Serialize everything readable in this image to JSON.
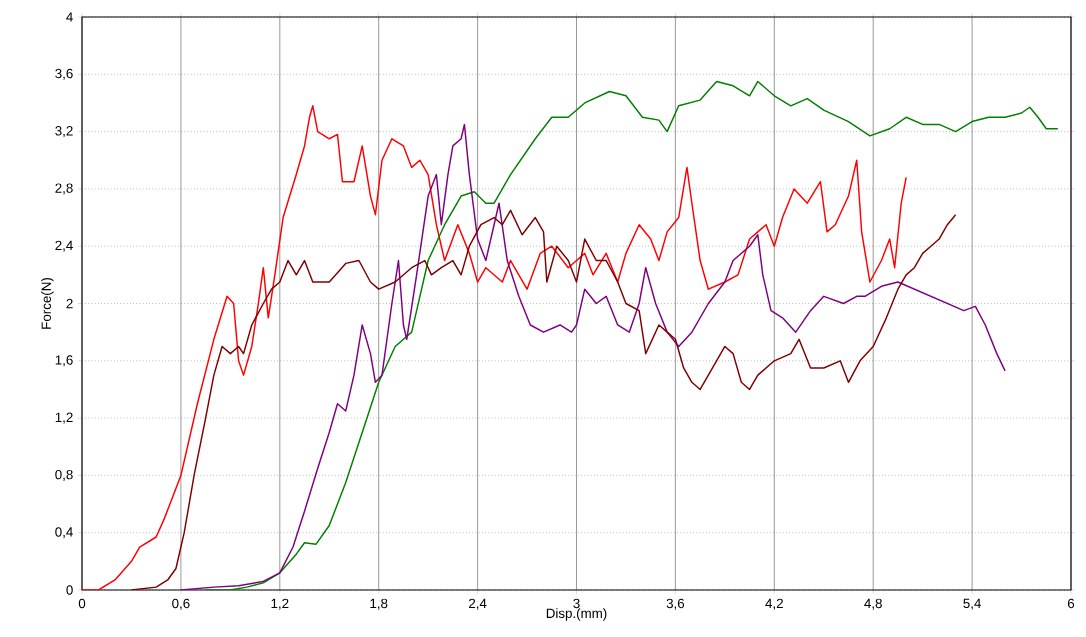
{
  "chart_data": {
    "type": "line",
    "xlabel": "Disp.(mm)",
    "ylabel": "Force(N)",
    "xlim": [
      0,
      6
    ],
    "ylim": [
      0,
      4
    ],
    "xticks": [
      0,
      {
        "value": 0.6,
        "label": "0,6"
      },
      {
        "value": 1.2,
        "label": "1,2"
      },
      {
        "value": 1.8,
        "label": "1,8"
      },
      {
        "value": 2.4,
        "label": "2,4"
      },
      3,
      {
        "value": 3.6,
        "label": "3,6"
      },
      {
        "value": 4.2,
        "label": "4,2"
      },
      {
        "value": 4.8,
        "label": "4,8"
      },
      {
        "value": 5.4,
        "label": "5,4"
      },
      6
    ],
    "yticks": [
      0,
      {
        "value": 0.4,
        "label": "0,4"
      },
      {
        "value": 0.8,
        "label": "0,8"
      },
      {
        "value": 1.2,
        "label": "1,2"
      },
      {
        "value": 1.6,
        "label": "1,6"
      },
      2,
      {
        "value": 2.4,
        "label": "2,4"
      },
      {
        "value": 2.8,
        "label": "2,8"
      },
      {
        "value": 3.2,
        "label": "3,2"
      },
      {
        "value": 3.6,
        "label": "3,6"
      },
      4
    ],
    "grid": true,
    "marker": "none",
    "line_style": "solid",
    "series": [
      {
        "color": "#ff0000",
        "x": [
          0,
          0.1,
          0.2,
          0.3,
          0.35,
          0.45,
          0.5,
          0.6,
          0.7,
          0.8,
          0.88,
          0.92,
          0.95,
          0.98,
          1.03,
          1.07,
          1.1,
          1.13,
          1.17,
          1.22,
          1.3,
          1.35,
          1.38,
          1.4,
          1.43,
          1.5,
          1.55,
          1.58,
          1.65,
          1.7,
          1.75,
          1.78,
          1.82,
          1.88,
          1.95,
          2.0,
          2.05,
          2.1,
          2.15,
          2.2,
          2.28,
          2.35,
          2.4,
          2.45,
          2.55,
          2.6,
          2.7,
          2.78,
          2.85,
          2.95,
          3.05,
          3.1,
          3.18,
          3.25,
          3.3,
          3.38,
          3.45,
          3.5,
          3.55,
          3.62,
          3.67,
          3.7,
          3.75,
          3.8,
          3.9,
          3.98,
          4.05,
          4.1,
          4.15,
          4.2,
          4.25,
          4.32,
          4.4,
          4.48,
          4.52,
          4.57,
          4.65,
          4.7,
          4.73,
          4.78,
          4.85,
          4.9,
          4.93,
          4.97,
          5.0
        ],
        "values": [
          0,
          0,
          0.07,
          0.2,
          0.3,
          0.37,
          0.5,
          0.8,
          1.3,
          1.75,
          2.05,
          2.0,
          1.6,
          1.5,
          1.7,
          2.0,
          2.25,
          1.9,
          2.2,
          2.6,
          2.9,
          3.1,
          3.3,
          3.38,
          3.2,
          3.15,
          3.18,
          2.85,
          2.85,
          3.1,
          2.75,
          2.62,
          3.0,
          3.15,
          3.1,
          2.95,
          3.0,
          2.9,
          2.55,
          2.3,
          2.55,
          2.35,
          2.15,
          2.25,
          2.15,
          2.3,
          2.1,
          2.35,
          2.4,
          2.25,
          2.35,
          2.2,
          2.35,
          2.15,
          2.35,
          2.55,
          2.45,
          2.3,
          2.5,
          2.6,
          2.95,
          2.7,
          2.3,
          2.1,
          2.15,
          2.2,
          2.45,
          2.5,
          2.55,
          2.4,
          2.6,
          2.8,
          2.7,
          2.85,
          2.5,
          2.55,
          2.75,
          3.0,
          2.5,
          2.15,
          2.3,
          2.45,
          2.25,
          2.7,
          2.88
        ]
      },
      {
        "color": "#008000",
        "x": [
          0.75,
          0.9,
          1.0,
          1.1,
          1.2,
          1.3,
          1.35,
          1.42,
          1.5,
          1.6,
          1.7,
          1.8,
          1.9,
          2.0,
          2.05,
          2.1,
          2.2,
          2.3,
          2.38,
          2.45,
          2.5,
          2.6,
          2.75,
          2.85,
          2.95,
          3.05,
          3.2,
          3.3,
          3.4,
          3.5,
          3.55,
          3.62,
          3.75,
          3.85,
          3.95,
          4.05,
          4.1,
          4.2,
          4.3,
          4.4,
          4.5,
          4.65,
          4.78,
          4.9,
          5.0,
          5.1,
          5.2,
          5.3,
          5.4,
          5.5,
          5.6,
          5.7,
          5.75,
          5.8,
          5.85,
          5.92
        ],
        "values": [
          0,
          0,
          0.02,
          0.05,
          0.12,
          0.25,
          0.33,
          0.32,
          0.45,
          0.75,
          1.1,
          1.45,
          1.7,
          1.8,
          2.05,
          2.3,
          2.55,
          2.75,
          2.78,
          2.7,
          2.7,
          2.9,
          3.15,
          3.3,
          3.3,
          3.4,
          3.48,
          3.45,
          3.3,
          3.28,
          3.2,
          3.38,
          3.42,
          3.55,
          3.52,
          3.45,
          3.55,
          3.45,
          3.38,
          3.43,
          3.35,
          3.27,
          3.17,
          3.22,
          3.3,
          3.25,
          3.25,
          3.2,
          3.27,
          3.3,
          3.3,
          3.33,
          3.37,
          3.3,
          3.22,
          3.22
        ]
      },
      {
        "color": "#800080",
        "x": [
          0.6,
          0.8,
          0.95,
          1.1,
          1.2,
          1.28,
          1.35,
          1.43,
          1.5,
          1.55,
          1.6,
          1.65,
          1.7,
          1.75,
          1.78,
          1.82,
          1.88,
          1.92,
          1.95,
          1.97,
          2.03,
          2.1,
          2.15,
          2.18,
          2.22,
          2.25,
          2.3,
          2.32,
          2.35,
          2.4,
          2.45,
          2.5,
          2.53,
          2.58,
          2.65,
          2.72,
          2.8,
          2.9,
          2.97,
          3.0,
          3.05,
          3.12,
          3.18,
          3.25,
          3.32,
          3.38,
          3.42,
          3.48,
          3.55,
          3.62,
          3.7,
          3.8,
          3.9,
          3.95,
          4.05,
          4.1,
          4.13,
          4.18,
          4.25,
          4.33,
          4.42,
          4.5,
          4.62,
          4.7,
          4.75,
          4.85,
          4.95,
          5.05,
          5.15,
          5.25,
          5.35,
          5.42,
          5.48,
          5.55,
          5.6
        ],
        "values": [
          0,
          0.02,
          0.03,
          0.06,
          0.12,
          0.3,
          0.55,
          0.85,
          1.1,
          1.3,
          1.25,
          1.5,
          1.85,
          1.65,
          1.45,
          1.5,
          2.0,
          2.3,
          1.85,
          1.75,
          2.2,
          2.75,
          2.9,
          2.55,
          2.9,
          3.1,
          3.15,
          3.25,
          2.9,
          2.45,
          2.3,
          2.55,
          2.7,
          2.3,
          2.05,
          1.85,
          1.8,
          1.85,
          1.8,
          1.85,
          2.1,
          2.0,
          2.05,
          1.85,
          1.8,
          2.0,
          2.25,
          2.0,
          1.8,
          1.7,
          1.8,
          2.0,
          2.15,
          2.3,
          2.4,
          2.48,
          2.2,
          1.95,
          1.9,
          1.8,
          1.95,
          2.05,
          2.0,
          2.05,
          2.05,
          2.12,
          2.15,
          2.1,
          2.05,
          2.0,
          1.95,
          1.98,
          1.85,
          1.65,
          1.53
        ]
      },
      {
        "color": "#800000",
        "x": [
          0.3,
          0.45,
          0.52,
          0.57,
          0.62,
          0.68,
          0.75,
          0.8,
          0.85,
          0.9,
          0.95,
          0.98,
          1.03,
          1.1,
          1.15,
          1.2,
          1.25,
          1.3,
          1.35,
          1.4,
          1.5,
          1.6,
          1.68,
          1.75,
          1.8,
          1.9,
          2.0,
          2.08,
          2.12,
          2.18,
          2.25,
          2.3,
          2.35,
          2.42,
          2.5,
          2.55,
          2.6,
          2.67,
          2.75,
          2.8,
          2.82,
          2.88,
          2.95,
          3.0,
          3.05,
          3.12,
          3.18,
          3.25,
          3.3,
          3.38,
          3.42,
          3.5,
          3.55,
          3.6,
          3.65,
          3.7,
          3.75,
          3.8,
          3.9,
          3.95,
          4.0,
          4.05,
          4.1,
          4.2,
          4.3,
          4.35,
          4.42,
          4.5,
          4.6,
          4.65,
          4.72,
          4.8,
          4.88,
          4.95,
          5.0,
          5.05,
          5.1,
          5.15,
          5.2,
          5.25,
          5.3
        ],
        "values": [
          0,
          0.02,
          0.07,
          0.15,
          0.4,
          0.8,
          1.2,
          1.5,
          1.7,
          1.65,
          1.7,
          1.65,
          1.85,
          2.0,
          2.1,
          2.15,
          2.3,
          2.2,
          2.3,
          2.15,
          2.15,
          2.28,
          2.3,
          2.15,
          2.1,
          2.15,
          2.25,
          2.3,
          2.2,
          2.25,
          2.3,
          2.2,
          2.4,
          2.55,
          2.6,
          2.55,
          2.65,
          2.48,
          2.6,
          2.5,
          2.15,
          2.4,
          2.3,
          2.15,
          2.45,
          2.3,
          2.3,
          2.15,
          2.0,
          1.95,
          1.65,
          1.85,
          1.8,
          1.75,
          1.55,
          1.45,
          1.4,
          1.5,
          1.7,
          1.65,
          1.45,
          1.4,
          1.5,
          1.6,
          1.65,
          1.75,
          1.55,
          1.55,
          1.6,
          1.45,
          1.6,
          1.7,
          1.9,
          2.1,
          2.2,
          2.25,
          2.35,
          2.4,
          2.45,
          2.55,
          2.62
        ]
      }
    ]
  }
}
